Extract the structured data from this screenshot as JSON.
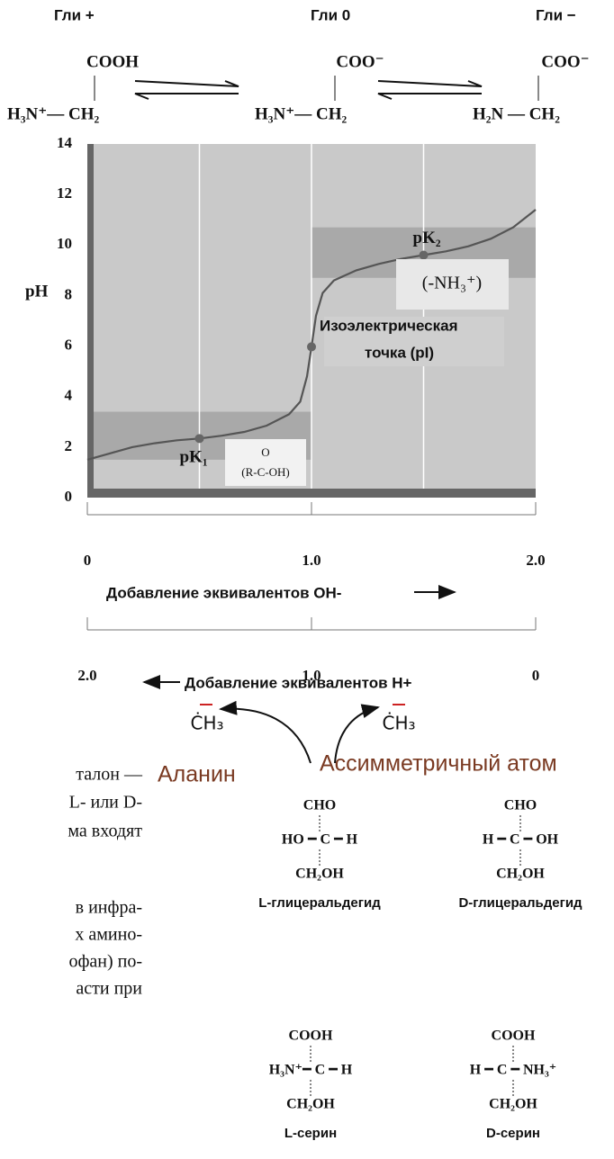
{
  "header": {
    "species": [
      "Гли +",
      "Гли 0",
      "Гли −"
    ],
    "top": [
      "COOH",
      "COO⁻",
      "COO⁻"
    ],
    "bottom": [
      "H₃N⁺— CH₂",
      "H₃N⁺— CH₂",
      "H₂N — CH₂"
    ]
  },
  "chart_data": {
    "type": "line",
    "ylabel": "pH",
    "x": [
      0,
      0.1,
      0.2,
      0.3,
      0.4,
      0.5,
      0.6,
      0.7,
      0.8,
      0.9,
      0.95,
      0.98,
      1.0,
      1.02,
      1.05,
      1.1,
      1.2,
      1.3,
      1.4,
      1.5,
      1.6,
      1.7,
      1.8,
      1.9,
      2.0
    ],
    "values": [
      1.5,
      1.75,
      2.0,
      2.15,
      2.27,
      2.34,
      2.45,
      2.6,
      2.85,
      3.3,
      3.8,
      4.8,
      5.97,
      7.2,
      8.1,
      8.6,
      9.0,
      9.25,
      9.45,
      9.6,
      9.75,
      9.95,
      10.25,
      10.7,
      11.4
    ],
    "color": "#555555",
    "xlim": [
      0,
      2
    ],
    "ylim": [
      0,
      14
    ],
    "yticks": [
      0,
      2,
      4,
      6,
      8,
      10,
      12,
      14
    ],
    "xgrid": [
      0.5,
      1,
      1.5
    ],
    "shaded_ranges": [
      {
        "x": [
          0,
          1
        ],
        "y": [
          1.5,
          3.4
        ]
      },
      {
        "x": [
          1,
          2
        ],
        "y": [
          8.7,
          10.7
        ]
      }
    ],
    "points": [
      {
        "x": 0.5,
        "y": 2.34,
        "label": "pK₁"
      },
      {
        "x": 1,
        "y": 5.97
      },
      {
        "x": 1.5,
        "y": 9.6,
        "label": "pK₂"
      }
    ],
    "annotations": [
      "(-NH₃⁺)",
      "O",
      "(R-C-OH)",
      "Изоэлектрическая",
      "точка (pI)"
    ],
    "xticks": [
      0,
      {
        "value": 1,
        "label": "1.0"
      },
      {
        "value": 2,
        "label": "2.0"
      }
    ],
    "xlabel": "Добавление эквивалентов OH-",
    "x2lim": [
      2,
      0
    ],
    "x2ticks": [
      {
        "value": 2,
        "label": "2.0"
      },
      {
        "value": 1,
        "label": "1.0"
      },
      0
    ],
    "x2label": "Добавление эквивалентов H+"
  },
  "lower": {
    "methyl": [
      "ĊH₃",
      "ĊH₃"
    ],
    "alanine": "Аланин",
    "asym": "Ассимметричный атом",
    "left_text": [
      "талон —",
      "L- или D-",
      "ма входят",
      "в инфра-",
      "х амино-",
      "офан) по-",
      "асти при"
    ],
    "glyceraldehyde": [
      {
        "top": "CHO",
        "mid": "HO ━ C ━ H",
        "bottom": "CH₂OH",
        "name": "L-глицеральдегид"
      },
      {
        "top": "CHO",
        "mid": "H ━ C ━ OH",
        "bottom": "CH₂OH",
        "name": "D-глицеральдегид"
      }
    ],
    "serine": [
      {
        "top": "COOH",
        "mid": "H₃N⁺━ C ━ H",
        "bottom": "CH₂OH",
        "name": "L-серин"
      },
      {
        "top": "COOH",
        "mid": "H ━ C ━ NH₃⁺",
        "bottom": "CH₂OH",
        "name": "D-серин"
      }
    ]
  }
}
